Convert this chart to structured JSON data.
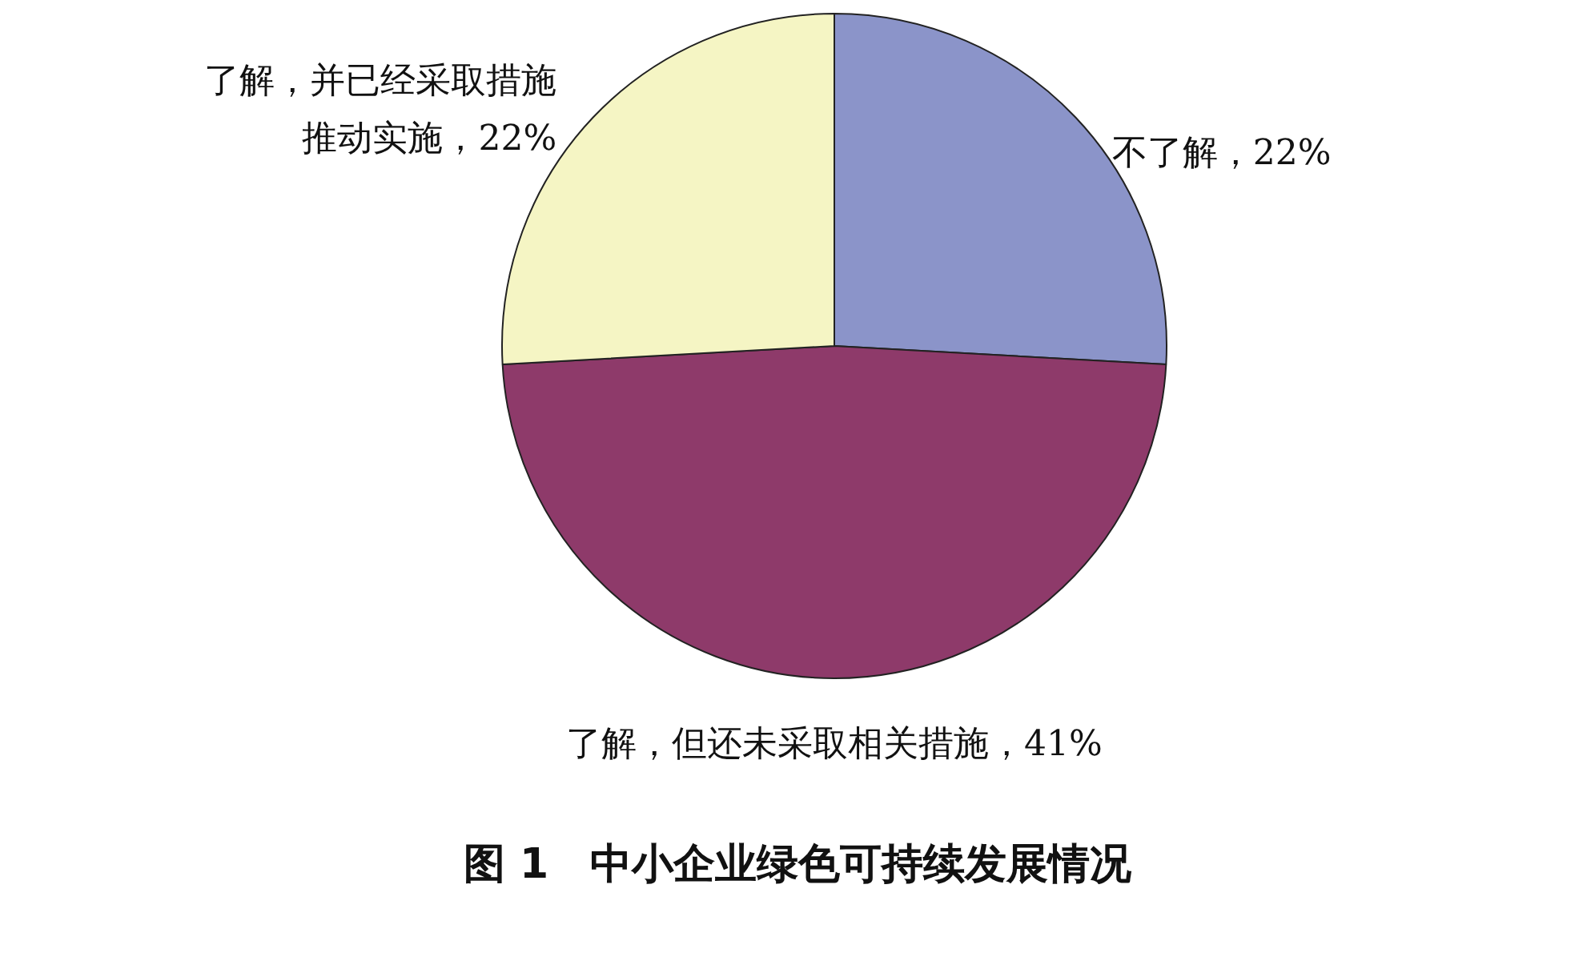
{
  "chart_data": {
    "type": "pie",
    "title": "图 1　中小企业绿色可持续发展情况",
    "categories": [
      "不了解",
      "了解，但还未采取相关措施",
      "了解，并已经采取措施推动实施"
    ],
    "values": [
      22,
      41,
      22
    ],
    "value_labels": [
      "22%",
      "41%",
      "22%"
    ],
    "colors": [
      "#8b94c9",
      "#8e3a6a",
      "#f5f5c4"
    ],
    "legend": false
  }
}
